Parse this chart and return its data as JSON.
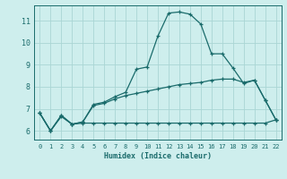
{
  "xlabel": "Humidex (Indice chaleur)",
  "background_color": "#ceeeed",
  "grid_color": "#aad6d4",
  "line_color": "#1a6b6b",
  "xlim": [
    -0.5,
    22.5
  ],
  "ylim": [
    5.6,
    11.7
  ],
  "yticks": [
    6,
    7,
    8,
    9,
    10,
    11
  ],
  "xticks": [
    0,
    1,
    2,
    3,
    4,
    5,
    6,
    7,
    8,
    9,
    10,
    11,
    12,
    13,
    14,
    15,
    16,
    17,
    18,
    19,
    20,
    21,
    22
  ],
  "line1_x": [
    0,
    1,
    2,
    3,
    4,
    5,
    6,
    7,
    8,
    9,
    10,
    11,
    12,
    13,
    14,
    15,
    16,
    17,
    18,
    19,
    20,
    21,
    22
  ],
  "line1_y": [
    6.8,
    6.0,
    6.7,
    6.3,
    6.4,
    7.2,
    7.3,
    7.55,
    7.75,
    8.8,
    8.9,
    10.3,
    11.35,
    11.4,
    11.3,
    10.85,
    9.5,
    9.5,
    8.85,
    8.15,
    8.3,
    7.4,
    6.5
  ],
  "line2_x": [
    0,
    1,
    2,
    3,
    4,
    5,
    6,
    7,
    8,
    9,
    10,
    11,
    12,
    13,
    14,
    15,
    16,
    17,
    18,
    19,
    20,
    21,
    22
  ],
  "line2_y": [
    6.8,
    6.0,
    6.7,
    6.3,
    6.4,
    7.15,
    7.25,
    7.45,
    7.6,
    7.7,
    7.8,
    7.9,
    8.0,
    8.1,
    8.15,
    8.2,
    8.3,
    8.35,
    8.35,
    8.2,
    8.3,
    7.4,
    6.5
  ],
  "line3_x": [
    0,
    1,
    2,
    3,
    4,
    5,
    6,
    7,
    8,
    9,
    10,
    11,
    12,
    13,
    14,
    15,
    16,
    17,
    18,
    19,
    20,
    21,
    22
  ],
  "line3_y": [
    6.8,
    6.0,
    6.65,
    6.3,
    6.35,
    6.35,
    6.35,
    6.35,
    6.35,
    6.35,
    6.35,
    6.35,
    6.35,
    6.35,
    6.35,
    6.35,
    6.35,
    6.35,
    6.35,
    6.35,
    6.35,
    6.35,
    6.5
  ],
  "marker": "+",
  "marker_size": 3,
  "linewidth": 0.9
}
